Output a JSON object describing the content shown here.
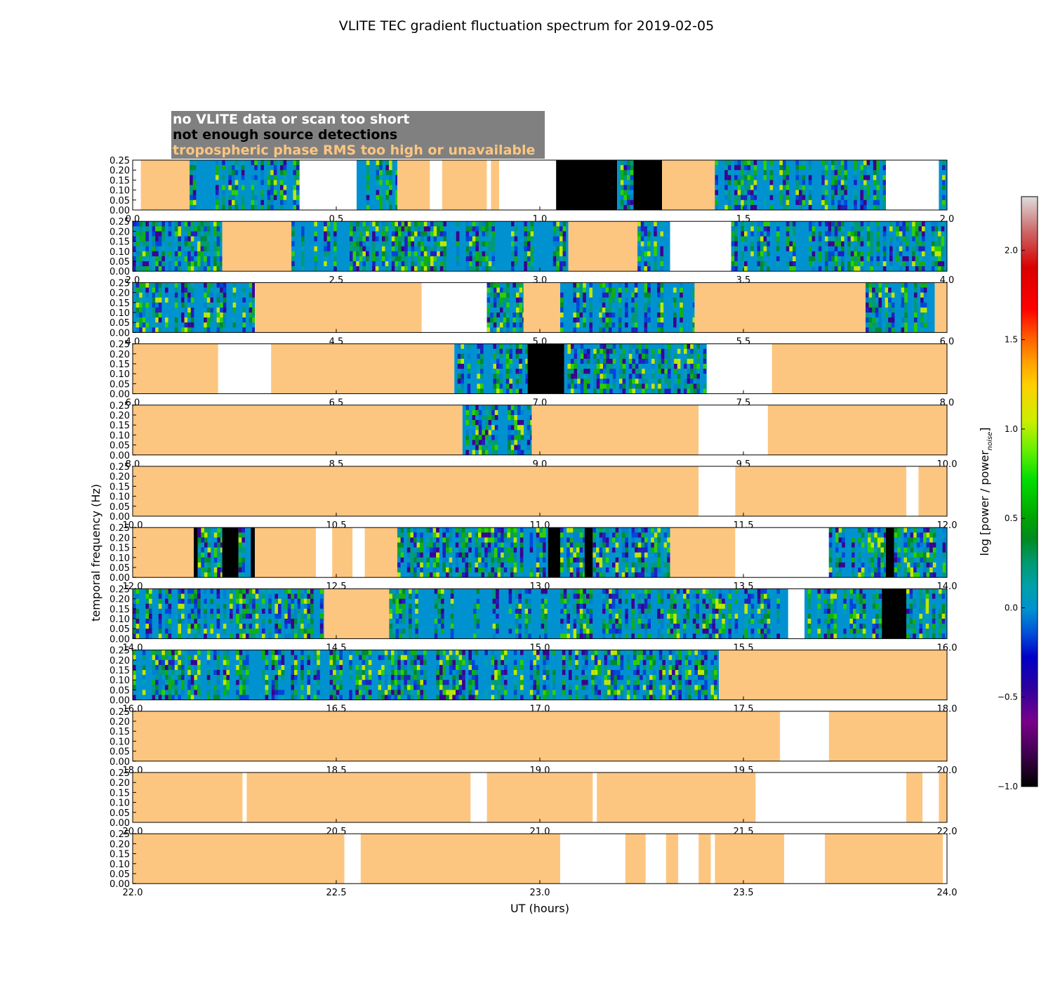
{
  "chart_data": {
    "type": "heatmap",
    "title": "VLITE TEC gradient fluctuation spectrum for 2019-02-05",
    "xlabel": "UT (hours)",
    "ylabel": "temporal frequency (Hz)",
    "ylim": [
      0,
      0.25
    ],
    "yticks": [
      "0.00",
      "0.05",
      "0.10",
      "0.15",
      "0.20",
      "0.25"
    ],
    "hours_per_panel": 2,
    "legend": [
      {
        "label": "no VLITE data or scan too short",
        "color": "#ffffff"
      },
      {
        "label": "not enough source detections",
        "color": "#000000"
      },
      {
        "label": "tropospheric phase RMS too high or unavailable",
        "color": "#fdc680"
      }
    ],
    "colorbar": {
      "label": "log [power / power",
      "label_sub": "noise",
      "label_end": "]",
      "min": -1.0,
      "max": 2.3,
      "ticks": [
        "−1.0",
        "−0.5",
        "0.0",
        "0.5",
        "1.0",
        "1.5",
        "2.0"
      ],
      "tick_values": [
        -1.0,
        -0.5,
        0.0,
        0.5,
        1.0,
        1.5,
        2.0
      ]
    },
    "status_colors": {
      "no_data": "#ffffff",
      "few_detections": "#000000",
      "tropo_rms": "#fdc680",
      "spectrum_low": "#0092d0"
    },
    "panels": [
      {
        "ticks": [
          "0.0",
          "0.5",
          "1.0",
          "1.5",
          "2.0"
        ],
        "segments": [
          [
            0.0,
            0.02,
            "W"
          ],
          [
            0.02,
            0.14,
            "O"
          ],
          [
            0.14,
            0.41,
            "D"
          ],
          [
            0.41,
            0.55,
            "W"
          ],
          [
            0.55,
            0.65,
            "D"
          ],
          [
            0.65,
            0.73,
            "O"
          ],
          [
            0.73,
            0.76,
            "W"
          ],
          [
            0.76,
            0.87,
            "O"
          ],
          [
            0.87,
            0.88,
            "W"
          ],
          [
            0.88,
            0.9,
            "O"
          ],
          [
            0.9,
            1.04,
            "W"
          ],
          [
            1.04,
            1.19,
            "K"
          ],
          [
            1.19,
            1.23,
            "D"
          ],
          [
            1.23,
            1.3,
            "K"
          ],
          [
            1.3,
            1.43,
            "O"
          ],
          [
            1.43,
            1.85,
            "D"
          ],
          [
            1.85,
            1.98,
            "W"
          ],
          [
            1.98,
            2.0,
            "D"
          ]
        ]
      },
      {
        "ticks": [
          "2.0",
          "2.5",
          "3.0",
          "3.5",
          "4.0"
        ],
        "segments": [
          [
            2.0,
            2.22,
            "D"
          ],
          [
            2.22,
            2.39,
            "O"
          ],
          [
            2.39,
            3.07,
            "D"
          ],
          [
            3.07,
            3.24,
            "O"
          ],
          [
            3.24,
            3.32,
            "D"
          ],
          [
            3.32,
            3.47,
            "W"
          ],
          [
            3.47,
            4.0,
            "D"
          ]
        ]
      },
      {
        "ticks": [
          "4.0",
          "4.5",
          "5.0",
          "5.5",
          "6.0"
        ],
        "segments": [
          [
            4.0,
            4.3,
            "D"
          ],
          [
            4.3,
            4.71,
            "O"
          ],
          [
            4.71,
            4.87,
            "W"
          ],
          [
            4.87,
            4.96,
            "D"
          ],
          [
            4.96,
            5.05,
            "O"
          ],
          [
            5.05,
            5.38,
            "D"
          ],
          [
            5.38,
            5.8,
            "O"
          ],
          [
            5.8,
            5.97,
            "D"
          ],
          [
            5.97,
            6.0,
            "O"
          ]
        ]
      },
      {
        "ticks": [
          "6.0",
          "6.5",
          "7.0",
          "7.5",
          "8.0"
        ],
        "segments": [
          [
            6.0,
            6.21,
            "O"
          ],
          [
            6.21,
            6.34,
            "W"
          ],
          [
            6.34,
            6.79,
            "O"
          ],
          [
            6.79,
            6.97,
            "D"
          ],
          [
            6.97,
            7.06,
            "K"
          ],
          [
            7.06,
            7.41,
            "D"
          ],
          [
            7.41,
            7.57,
            "W"
          ],
          [
            7.57,
            8.0,
            "O"
          ]
        ]
      },
      {
        "ticks": [
          "8.0",
          "8.5",
          "9.0",
          "9.5",
          "10.0"
        ],
        "segments": [
          [
            8.0,
            8.81,
            "O"
          ],
          [
            8.81,
            8.98,
            "D"
          ],
          [
            8.98,
            9.39,
            "O"
          ],
          [
            9.39,
            9.56,
            "W"
          ],
          [
            9.56,
            10.0,
            "O"
          ]
        ]
      },
      {
        "ticks": [
          "10.0",
          "10.5",
          "11.0",
          "11.5",
          "12.0"
        ],
        "segments": [
          [
            10.0,
            11.39,
            "O"
          ],
          [
            11.39,
            11.48,
            "W"
          ],
          [
            11.48,
            11.9,
            "O"
          ],
          [
            11.9,
            11.93,
            "W"
          ],
          [
            11.93,
            12.0,
            "O"
          ]
        ]
      },
      {
        "ticks": [
          "12.0",
          "12.5",
          "13.0",
          "13.5",
          "14.0"
        ],
        "segments": [
          [
            12.0,
            12.15,
            "O"
          ],
          [
            12.15,
            12.16,
            "K"
          ],
          [
            12.16,
            12.22,
            "D"
          ],
          [
            12.22,
            12.26,
            "K"
          ],
          [
            12.26,
            12.29,
            "D"
          ],
          [
            12.29,
            12.3,
            "K"
          ],
          [
            12.3,
            12.45,
            "O"
          ],
          [
            12.45,
            12.49,
            "W"
          ],
          [
            12.49,
            12.54,
            "O"
          ],
          [
            12.54,
            12.57,
            "W"
          ],
          [
            12.57,
            12.65,
            "O"
          ],
          [
            12.65,
            13.02,
            "D"
          ],
          [
            13.02,
            13.05,
            "K"
          ],
          [
            13.05,
            13.11,
            "D"
          ],
          [
            13.11,
            13.13,
            "K"
          ],
          [
            13.13,
            13.32,
            "D"
          ],
          [
            13.32,
            13.48,
            "O"
          ],
          [
            13.48,
            13.71,
            "W"
          ],
          [
            13.71,
            13.85,
            "D"
          ],
          [
            13.85,
            13.87,
            "K"
          ],
          [
            13.87,
            14.0,
            "D"
          ]
        ]
      },
      {
        "ticks": [
          "14.0",
          "14.5",
          "15.0",
          "15.5",
          "16.0"
        ],
        "segments": [
          [
            14.0,
            14.47,
            "D"
          ],
          [
            14.47,
            14.63,
            "O"
          ],
          [
            14.63,
            15.61,
            "D"
          ],
          [
            15.61,
            15.65,
            "W"
          ],
          [
            15.65,
            15.84,
            "D"
          ],
          [
            15.84,
            15.9,
            "K"
          ],
          [
            15.9,
            16.0,
            "D"
          ]
        ]
      },
      {
        "ticks": [
          "16.0",
          "16.5",
          "17.0",
          "17.5",
          "18.0"
        ],
        "segments": [
          [
            16.0,
            17.44,
            "D"
          ],
          [
            17.44,
            18.0,
            "O"
          ]
        ]
      },
      {
        "ticks": [
          "18.0",
          "18.5",
          "19.0",
          "19.5",
          "20.0"
        ],
        "segments": [
          [
            18.0,
            19.59,
            "O"
          ],
          [
            19.59,
            19.71,
            "W"
          ],
          [
            19.71,
            20.0,
            "O"
          ]
        ]
      },
      {
        "ticks": [
          "20.0",
          "20.5",
          "21.0",
          "21.5",
          "22.0"
        ],
        "segments": [
          [
            20.0,
            20.27,
            "O"
          ],
          [
            20.27,
            20.28,
            "W"
          ],
          [
            20.28,
            20.83,
            "O"
          ],
          [
            20.83,
            20.87,
            "W"
          ],
          [
            20.87,
            21.13,
            "O"
          ],
          [
            21.13,
            21.14,
            "W"
          ],
          [
            21.14,
            21.53,
            "O"
          ],
          [
            21.53,
            21.9,
            "W"
          ],
          [
            21.9,
            21.94,
            "O"
          ],
          [
            21.94,
            21.98,
            "W"
          ],
          [
            21.98,
            22.0,
            "O"
          ]
        ]
      },
      {
        "ticks": [
          "22.0",
          "22.5",
          "23.0",
          "23.5",
          "24.0"
        ],
        "segments": [
          [
            22.0,
            22.52,
            "O"
          ],
          [
            22.52,
            22.56,
            "W"
          ],
          [
            22.56,
            23.05,
            "O"
          ],
          [
            23.05,
            23.21,
            "W"
          ],
          [
            23.21,
            23.26,
            "O"
          ],
          [
            23.26,
            23.31,
            "W"
          ],
          [
            23.31,
            23.34,
            "O"
          ],
          [
            23.34,
            23.39,
            "W"
          ],
          [
            23.39,
            23.42,
            "O"
          ],
          [
            23.42,
            23.43,
            "W"
          ],
          [
            23.43,
            23.6,
            "O"
          ],
          [
            23.6,
            23.7,
            "W"
          ],
          [
            23.7,
            23.99,
            "O"
          ],
          [
            23.99,
            24.0,
            "W"
          ]
        ]
      }
    ]
  }
}
